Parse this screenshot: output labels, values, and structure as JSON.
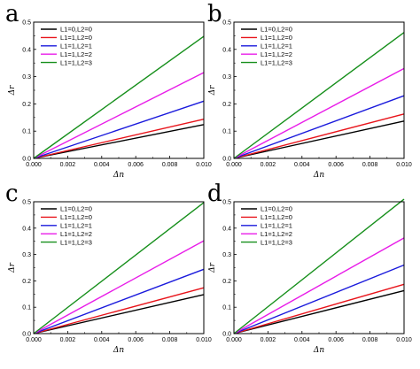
{
  "figure": {
    "background": "#ffffff",
    "series_colors": [
      "#000000",
      "#e8141b",
      "#1a1adc",
      "#e81ce8",
      "#168f1b"
    ]
  },
  "chart_data": [
    {
      "type": "line",
      "panel": "a",
      "xlabel": "Δn",
      "ylabel": "Δr",
      "xlim": [
        0,
        0.01
      ],
      "ylim": [
        0,
        0.5
      ],
      "xticks": [
        "0.000",
        "0.002",
        "0.004",
        "0.006",
        "0.008",
        "0.010"
      ],
      "yticks": [
        "0.0",
        "0.1",
        "0.2",
        "0.3",
        "0.4",
        "0.5"
      ],
      "legend_position": "top-left",
      "series": [
        {
          "name": "L1=0,L2=0",
          "color": "#000000",
          "x": [
            0,
            0.01
          ],
          "y": [
            0,
            0.124
          ]
        },
        {
          "name": "L1=1,L2=0",
          "color": "#e8141b",
          "x": [
            0,
            0.01
          ],
          "y": [
            0,
            0.144
          ]
        },
        {
          "name": "L1=1,L2=1",
          "color": "#1a1adc",
          "x": [
            0,
            0.01
          ],
          "y": [
            0,
            0.21
          ]
        },
        {
          "name": "L1=1,L2=2",
          "color": "#e81ce8",
          "x": [
            0,
            0.01
          ],
          "y": [
            0,
            0.315
          ]
        },
        {
          "name": "L1=1,L2=3",
          "color": "#168f1b",
          "x": [
            0,
            0.01
          ],
          "y": [
            0,
            0.448
          ]
        }
      ]
    },
    {
      "type": "line",
      "panel": "b",
      "xlabel": "Δn",
      "ylabel": "Δr",
      "xlim": [
        0,
        0.01
      ],
      "ylim": [
        0,
        0.5
      ],
      "xticks": [
        "0.000",
        "0.002",
        "0.004",
        "0.006",
        "0.008",
        "0.010"
      ],
      "yticks": [
        "0.0",
        "0.1",
        "0.2",
        "0.3",
        "0.4",
        "0.5"
      ],
      "legend_position": "top-left",
      "series": [
        {
          "name": "L1=0,L2=0",
          "color": "#000000",
          "x": [
            0,
            0.01
          ],
          "y": [
            0,
            0.137
          ]
        },
        {
          "name": "L1=1,L2=0",
          "color": "#e8141b",
          "x": [
            0,
            0.01
          ],
          "y": [
            0,
            0.163
          ]
        },
        {
          "name": "L1=1,L2=1",
          "color": "#1a1adc",
          "x": [
            0,
            0.01
          ],
          "y": [
            0,
            0.23
          ]
        },
        {
          "name": "L1=1,L2=2",
          "color": "#e81ce8",
          "x": [
            0,
            0.01
          ],
          "y": [
            0,
            0.33
          ]
        },
        {
          "name": "L1=1,L2=3",
          "color": "#168f1b",
          "x": [
            0,
            0.01
          ],
          "y": [
            0,
            0.462
          ]
        }
      ]
    },
    {
      "type": "line",
      "panel": "c",
      "xlabel": "Δn",
      "ylabel": "Δr",
      "xlim": [
        0,
        0.01
      ],
      "ylim": [
        0,
        0.5
      ],
      "xticks": [
        "0.000",
        "0.002",
        "0.004",
        "0.006",
        "0.008",
        "0.010"
      ],
      "yticks": [
        "0.0",
        "0.1",
        "0.2",
        "0.3",
        "0.4",
        "0.5"
      ],
      "legend_position": "top-left",
      "series": [
        {
          "name": "L1=0,L2=0",
          "color": "#000000",
          "x": [
            0,
            0.01
          ],
          "y": [
            0,
            0.148
          ]
        },
        {
          "name": "L1=1,L2=0",
          "color": "#e8141b",
          "x": [
            0,
            0.01
          ],
          "y": [
            0,
            0.174
          ]
        },
        {
          "name": "L1=1,L2=1",
          "color": "#1a1adc",
          "x": [
            0,
            0.01
          ],
          "y": [
            0,
            0.244
          ]
        },
        {
          "name": "L1=1,L2=2",
          "color": "#e81ce8",
          "x": [
            0,
            0.01
          ],
          "y": [
            0,
            0.352
          ]
        },
        {
          "name": "L1=1,L2=3",
          "color": "#168f1b",
          "x": [
            0,
            0.01
          ],
          "y": [
            0,
            0.497
          ]
        }
      ]
    },
    {
      "type": "line",
      "panel": "d",
      "xlabel": "Δn",
      "ylabel": "Δr",
      "xlim": [
        0,
        0.01
      ],
      "ylim": [
        0,
        0.5
      ],
      "xticks": [
        "0.000",
        "0.002",
        "0.004",
        "0.006",
        "0.008",
        "0.010"
      ],
      "yticks": [
        "0.0",
        "0.1",
        "0.2",
        "0.3",
        "0.4",
        "0.5"
      ],
      "legend_position": "top-left",
      "series": [
        {
          "name": "L1=0,L2=0",
          "color": "#000000",
          "x": [
            0,
            0.01
          ],
          "y": [
            0,
            0.163
          ]
        },
        {
          "name": "L1=1,L2=0",
          "color": "#e8141b",
          "x": [
            0,
            0.01
          ],
          "y": [
            0,
            0.187
          ]
        },
        {
          "name": "L1=1,L2=1",
          "color": "#1a1adc",
          "x": [
            0,
            0.01
          ],
          "y": [
            0,
            0.26
          ]
        },
        {
          "name": "L1=1,L2=2",
          "color": "#e81ce8",
          "x": [
            0,
            0.01
          ],
          "y": [
            0,
            0.363
          ]
        },
        {
          "name": "L1=1,L2=3",
          "color": "#168f1b",
          "x": [
            0,
            0.01
          ],
          "y": [
            0,
            0.51
          ]
        }
      ]
    }
  ]
}
